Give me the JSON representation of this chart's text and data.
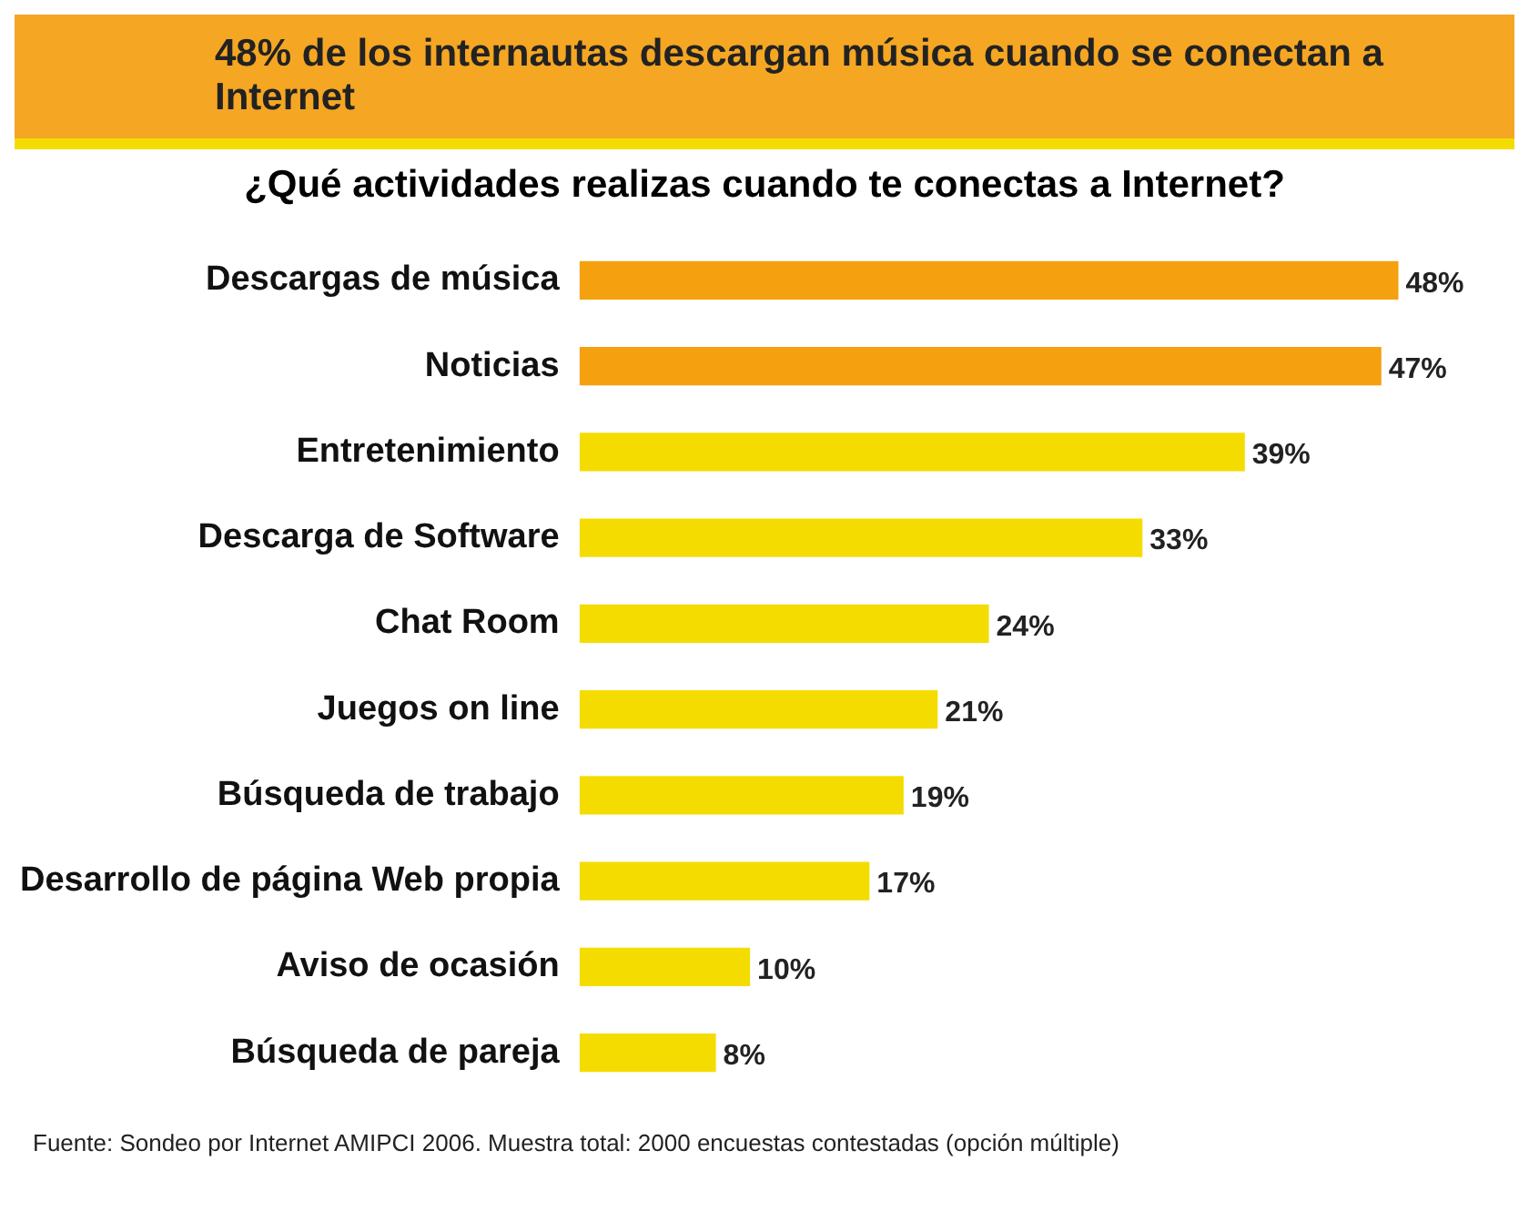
{
  "chart_data": {
    "type": "bar",
    "orientation": "horizontal",
    "title": "48% de los internautas descargan música cuando se conectan a Internet",
    "subtitle": "¿Qué actividades realizas cuando te conectas a Internet?",
    "categories": [
      "Descargas de música",
      "Noticias",
      "Entretenimiento",
      "Descarga de Software",
      "Chat Room",
      "Juegos on line",
      "Búsqueda de trabajo",
      "Desarrollo de página Web propia",
      "Aviso de ocasión",
      "Búsqueda de pareja"
    ],
    "values": [
      48,
      47,
      39,
      33,
      24,
      21,
      19,
      17,
      10,
      8
    ],
    "colors": [
      "#f5a00f",
      "#f5a00f",
      "#f5dc00",
      "#f5dc00",
      "#f5dc00",
      "#f5dc00",
      "#f5dc00",
      "#f5dc00",
      "#f5dc00",
      "#f5dc00"
    ],
    "value_labels": [
      "48%",
      "47%",
      "39%",
      "33%",
      "24%",
      "21%",
      "19%",
      "17%",
      "10%",
      "8%"
    ],
    "annotations": [
      "Fuente: Sondeo por Internet AMIPCI 2006. Muestra total: 2000 encuestas contestadas (opción múltiple)"
    ],
    "legend": false,
    "grid": false
  }
}
